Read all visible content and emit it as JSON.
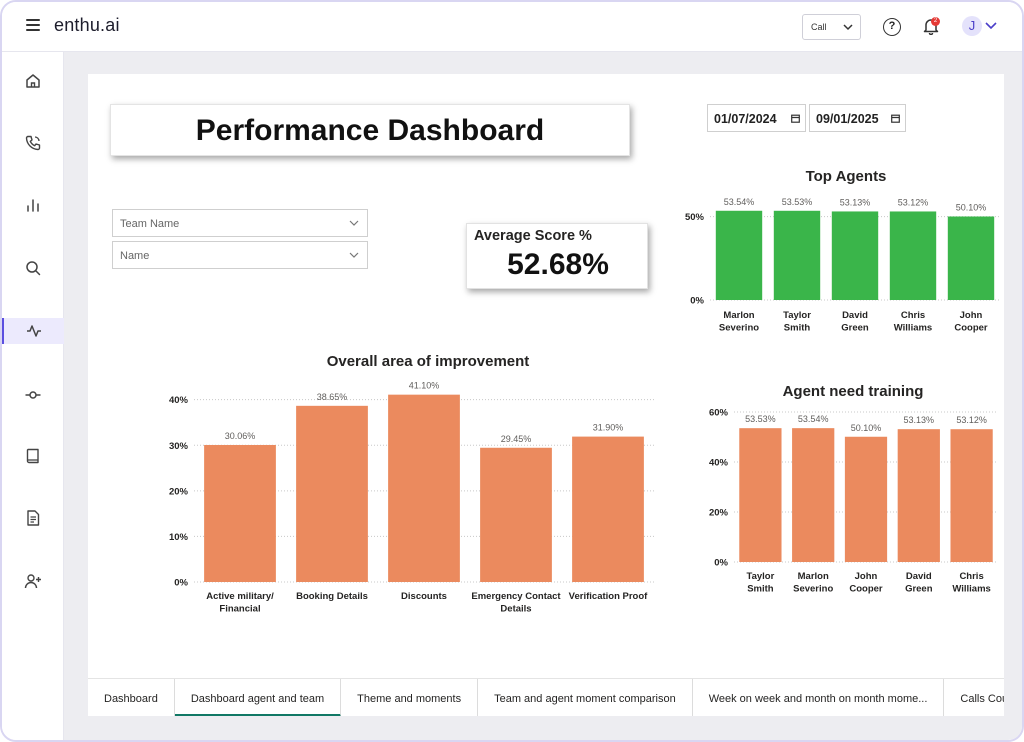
{
  "app": {
    "brand": "enthu.ai"
  },
  "header": {
    "call_select": "Call",
    "notification_count": "2",
    "avatar_initial": "J"
  },
  "sidebar": {
    "items": [
      {
        "name": "home-icon",
        "active": false
      },
      {
        "name": "phone-icon",
        "active": false
      },
      {
        "name": "bar-chart-icon",
        "active": false
      },
      {
        "name": "search-icon",
        "active": false
      },
      {
        "name": "activity-icon",
        "active": true
      },
      {
        "name": "commit-icon",
        "active": false
      },
      {
        "name": "book-icon",
        "active": false
      },
      {
        "name": "document-icon",
        "active": false
      },
      {
        "name": "add-user-icon",
        "active": false
      }
    ]
  },
  "dashboard": {
    "title": "Performance Dashboard",
    "date_from": "01/07/2024",
    "date_to": "09/01/2025",
    "team_filter_placeholder": "Team Name",
    "name_filter_placeholder": "Name",
    "avg_score_label": "Average Score %",
    "avg_score_value": "52.68%"
  },
  "chart_data": [
    {
      "type": "bar",
      "title": "Top Agents",
      "categories": [
        "Marlon Severino",
        "Taylor Smith",
        "David Green",
        "Chris Williams",
        "John Cooper"
      ],
      "values": [
        53.54,
        53.53,
        53.13,
        53.12,
        50.1
      ],
      "data_labels": [
        "53.54%",
        "53.53%",
        "53.13%",
        "53.12%",
        "50.10%"
      ],
      "yticks": [
        "0%",
        "50%"
      ],
      "ylim": [
        0,
        60
      ],
      "color": "#3ab54a"
    },
    {
      "type": "bar",
      "title": "Overall area of improvement",
      "categories": [
        "Active military/Financial Obligations",
        "Booking Details",
        "Discounts",
        "Emergency Contact Details",
        "Verification Proof"
      ],
      "values": [
        30.06,
        38.65,
        41.1,
        29.45,
        31.9
      ],
      "data_labels": [
        "30.06%",
        "38.65%",
        "41.10%",
        "29.45%",
        "31.90%"
      ],
      "yticks": [
        "0%",
        "10%",
        "20%",
        "30%",
        "40%"
      ],
      "ylim": [
        0,
        43
      ],
      "color": "#eb8a5e"
    },
    {
      "type": "bar",
      "title": "Agent need training",
      "categories": [
        "Taylor Smith",
        "Marlon Severino",
        "John Cooper",
        "David Green",
        "Chris Williams"
      ],
      "values": [
        53.53,
        53.54,
        50.1,
        53.13,
        53.12
      ],
      "data_labels": [
        "53.53%",
        "53.54%",
        "50.10%",
        "53.13%",
        "53.12%"
      ],
      "yticks": [
        "0%",
        "20%",
        "40%",
        "60%"
      ],
      "ylim": [
        0,
        60
      ],
      "color": "#eb8a5e"
    }
  ],
  "tabs": [
    {
      "label": "Dashboard",
      "active": false
    },
    {
      "label": "Dashboard agent and team",
      "active": true
    },
    {
      "label": "Theme and moments",
      "active": false
    },
    {
      "label": "Team and agent moment comparison",
      "active": false
    },
    {
      "label": "Week on week and month on month mome...",
      "active": false
    },
    {
      "label": "Calls Count in ti",
      "active": false
    }
  ]
}
